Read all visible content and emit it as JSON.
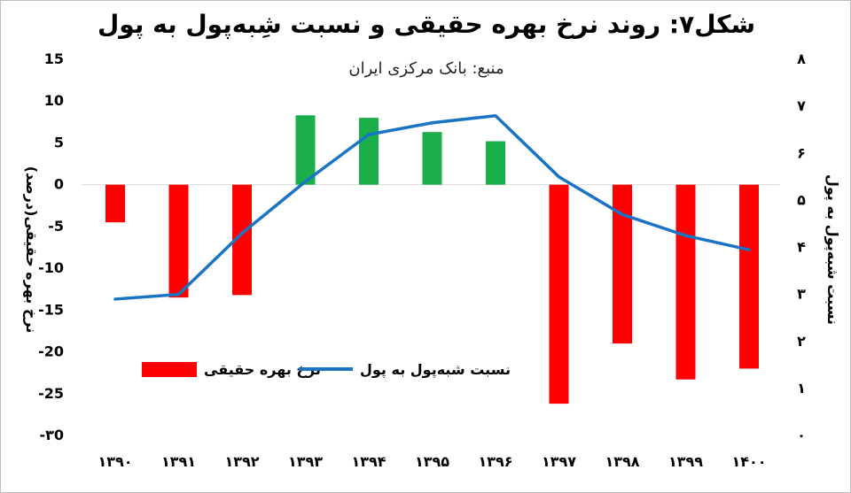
{
  "chart_data": {
    "type": "bar+line",
    "title": "شکل۷: روند نرخ بهره حقیقی و نسبت شِبه‌پول به پول",
    "subtitle": "منبع: بانک مرکزی ایران",
    "categories": [
      "۱۳۹۰",
      "۱۳۹۱",
      "۱۳۹۲",
      "۱۳۹۳",
      "۱۳۹۴",
      "۱۳۹۵",
      "۱۳۹۶",
      "۱۳۹۷",
      "۱۳۹۸",
      "۱۳۹۹",
      "۱۴۰۰"
    ],
    "left_axis": {
      "label": "نرخ بهره حقیقی(درصد)",
      "ylim": [
        -30,
        15
      ],
      "ticks": [
        15,
        10,
        5,
        0,
        -5,
        -10,
        -15,
        -20,
        -25,
        -30
      ],
      "tick_labels": [
        "15",
        "10",
        "5",
        "0",
        "-5",
        "-10",
        "-15",
        "-20",
        "-25",
        "-۳0"
      ]
    },
    "right_axis": {
      "label": "نسبت شبه‌پول به پول",
      "ylim": [
        0,
        8
      ],
      "ticks": [
        8,
        7,
        6,
        5,
        4,
        3,
        2,
        1,
        0
      ],
      "tick_labels": [
        "۸",
        "۷",
        "۶",
        "۵",
        "۴",
        "۳",
        "۲",
        "۱",
        "۰"
      ]
    },
    "series": [
      {
        "name": "نرخ بهره حقیقی",
        "type": "bar",
        "axis": "left",
        "values": [
          -4.5,
          -13.5,
          -13.2,
          8.3,
          8.0,
          6.3,
          5.2,
          -26.2,
          -19.0,
          -23.3,
          -22.0
        ],
        "colors": [
          "#ff0000",
          "#ff0000",
          "#ff0000",
          "#1aaf4b",
          "#1aaf4b",
          "#1aaf4b",
          "#1aaf4b",
          "#ff0000",
          "#ff0000",
          "#ff0000",
          "#ff0000"
        ]
      },
      {
        "name": "نسبت شبه‌پول به پول",
        "type": "line",
        "axis": "right",
        "values": [
          2.9,
          3.0,
          4.3,
          5.4,
          6.4,
          6.65,
          6.8,
          5.5,
          4.7,
          4.25,
          3.95
        ],
        "color": "#1a74c4"
      }
    ],
    "legend": {
      "position": "inside-left-middle"
    },
    "grid": false
  }
}
